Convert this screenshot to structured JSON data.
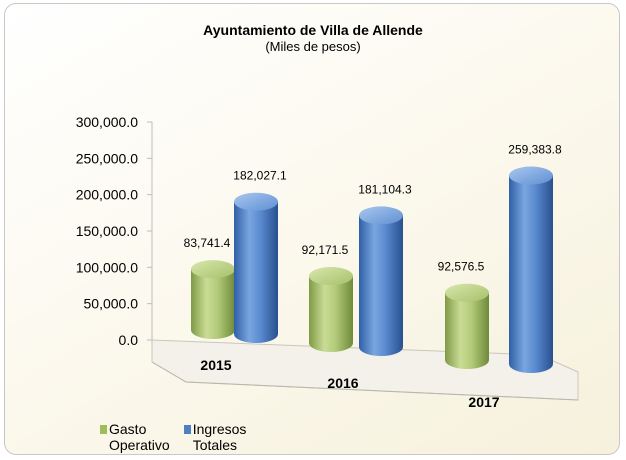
{
  "chart_data": {
    "type": "bar",
    "title": "Ayuntamiento de Villa de Allende",
    "subtitle": "(Miles de pesos)",
    "categories": [
      "2015",
      "2016",
      "2017"
    ],
    "series": [
      {
        "name": "Gasto Operativo",
        "values": [
          83741.4,
          92171.5,
          92576.5
        ],
        "labels": [
          "83,741.4",
          "92,171.5",
          "92,576.5"
        ],
        "color": "#a9c46b"
      },
      {
        "name": "Ingresos Totales",
        "values": [
          182027.1,
          181104.3,
          259383.8
        ],
        "labels": [
          "182,027.1",
          "181,104.3",
          "259,383.8"
        ],
        "color": "#4f7fc4"
      }
    ],
    "yticks": [
      "0.0",
      "50,000.0",
      "100,000.0",
      "150,000.0",
      "200,000.0",
      "250,000.0",
      "300,000.0"
    ],
    "ylim": [
      0,
      300000
    ],
    "legend_position": "bottom-left",
    "grid": false
  },
  "legend": {
    "gasto_line1": "Gasto",
    "gasto_line2": "Operativo",
    "ingresos_line1": "Ingresos",
    "ingresos_line2": "Totales"
  }
}
